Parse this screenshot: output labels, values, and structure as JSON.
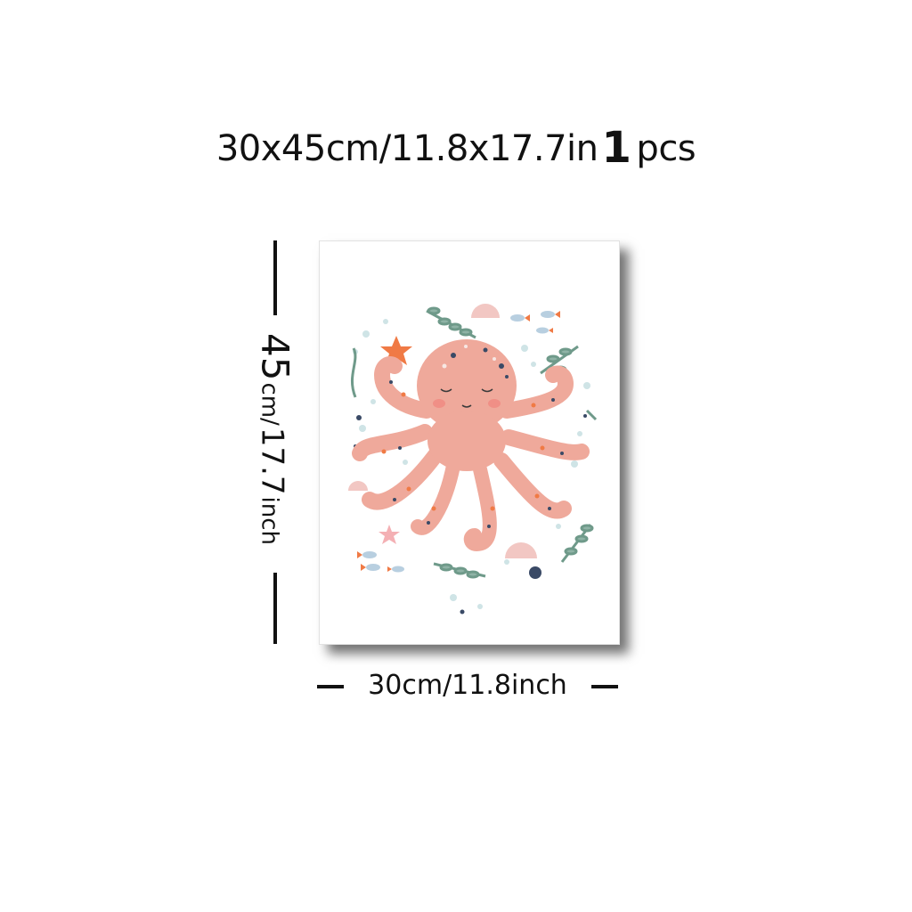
{
  "header": {
    "size_text": "30x45cm/11.8x17.7in",
    "quantity": "1",
    "unit": "pcs"
  },
  "height_label": {
    "value": "45",
    "cm_unit": "cm/",
    "inch_value": "17.7",
    "inch_unit": "inch"
  },
  "width_label": {
    "text": "30cm/11.8inch"
  },
  "artwork": {
    "subject": "octopus-illustration",
    "colors": {
      "body": "#efa99b",
      "spots_orange": "#f07a45",
      "spots_navy": "#3a4a66",
      "seaweed": "#6f9a8a",
      "bubbles": "#cfe4e6",
      "cheeks": "#f08f86"
    }
  }
}
